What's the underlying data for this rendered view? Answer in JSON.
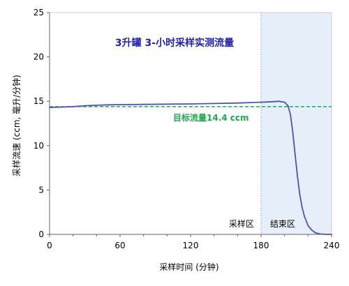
{
  "chart_data": {
    "type": "line",
    "title": "3升罐 3-小时采样实测流量",
    "xlabel": "采样时间 (分钟)",
    "ylabel": "采样流速 (ccm, 毫升/分钟)",
    "xlim": [
      0,
      240
    ],
    "ylim": [
      0,
      25
    ],
    "x_ticks": [
      "0",
      "60",
      "120",
      "180",
      "240"
    ],
    "y_ticks": [
      "0",
      "5",
      "10",
      "15",
      "20",
      "25"
    ],
    "grid": false,
    "series": [
      {
        "values": [
          [
            0,
            14.3
          ],
          [
            10,
            14.35
          ],
          [
            20,
            14.4
          ],
          [
            30,
            14.5
          ],
          [
            40,
            14.55
          ],
          [
            50,
            14.6
          ],
          [
            60,
            14.62
          ],
          [
            80,
            14.65
          ],
          [
            100,
            14.68
          ],
          [
            120,
            14.7
          ],
          [
            140,
            14.75
          ],
          [
            160,
            14.8
          ],
          [
            170,
            14.85
          ],
          [
            180,
            14.9
          ],
          [
            190,
            14.95
          ],
          [
            195,
            15.0
          ],
          [
            200,
            14.9
          ],
          [
            203,
            14.5
          ],
          [
            205,
            13.5
          ],
          [
            207,
            11.5
          ],
          [
            209,
            9.0
          ],
          [
            211,
            6.5
          ],
          [
            213,
            4.5
          ],
          [
            215,
            3.0
          ],
          [
            217,
            2.0
          ],
          [
            220,
            1.0
          ],
          [
            223,
            0.5
          ],
          [
            226,
            0.2
          ],
          [
            230,
            0.05
          ],
          [
            235,
            0.0
          ],
          [
            240,
            0.0
          ]
        ],
        "color": "#4f55a8"
      }
    ],
    "target_line": {
      "y": 14.4,
      "label": "目标流量14.4 ccm",
      "color": "#22a650"
    },
    "zones": [
      {
        "label": "采样区",
        "x_end": 180
      },
      {
        "label": "结束区",
        "x_start": 180,
        "x_end": 240,
        "color": "#e6eef9"
      }
    ]
  }
}
